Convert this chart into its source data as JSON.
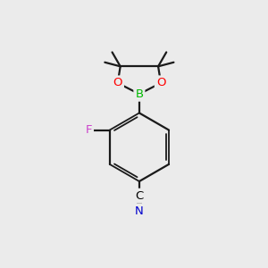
{
  "bg_color": "#ebebeb",
  "bond_color": "#1a1a1a",
  "atom_colors": {
    "O": "#ff0000",
    "B": "#00bb00",
    "F": "#cc44cc",
    "N": "#0000cc",
    "C_label": "#000000"
  },
  "figsize": [
    3.0,
    3.0
  ],
  "dpi": 100
}
